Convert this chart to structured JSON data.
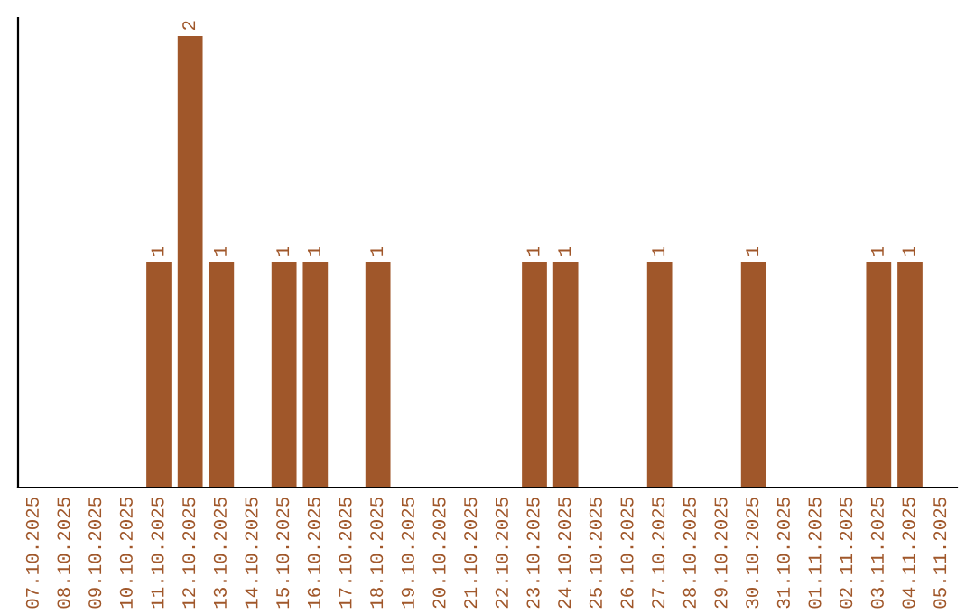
{
  "chart_data": {
    "type": "bar",
    "categories": [
      "07.10.2025",
      "08.10.2025",
      "09.10.2025",
      "10.10.2025",
      "11.10.2025",
      "12.10.2025",
      "13.10.2025",
      "14.10.2025",
      "15.10.2025",
      "16.10.2025",
      "17.10.2025",
      "18.10.2025",
      "19.10.2025",
      "20.10.2025",
      "21.10.2025",
      "22.10.2025",
      "23.10.2025",
      "24.10.2025",
      "25.10.2025",
      "26.10.2025",
      "27.10.2025",
      "28.10.2025",
      "29.10.2025",
      "30.10.2025",
      "31.10.2025",
      "01.11.2025",
      "02.11.2025",
      "03.11.2025",
      "04.11.2025",
      "05.11.2025"
    ],
    "values": [
      0,
      0,
      0,
      0,
      1,
      2,
      1,
      0,
      1,
      1,
      0,
      1,
      0,
      0,
      0,
      0,
      1,
      1,
      0,
      0,
      1,
      0,
      0,
      1,
      0,
      0,
      0,
      1,
      1,
      0
    ],
    "value_labels": [
      null,
      null,
      null,
      null,
      "1",
      "2",
      "1",
      null,
      "1",
      "1",
      null,
      "1",
      null,
      null,
      null,
      null,
      "1",
      "1",
      null,
      null,
      "1",
      null,
      null,
      "1",
      null,
      null,
      null,
      "1",
      "1",
      null
    ],
    "color": "#a0572a",
    "ylim": [
      0,
      2.08
    ],
    "tick_labels": "x",
    "grid": false,
    "legend": false
  }
}
